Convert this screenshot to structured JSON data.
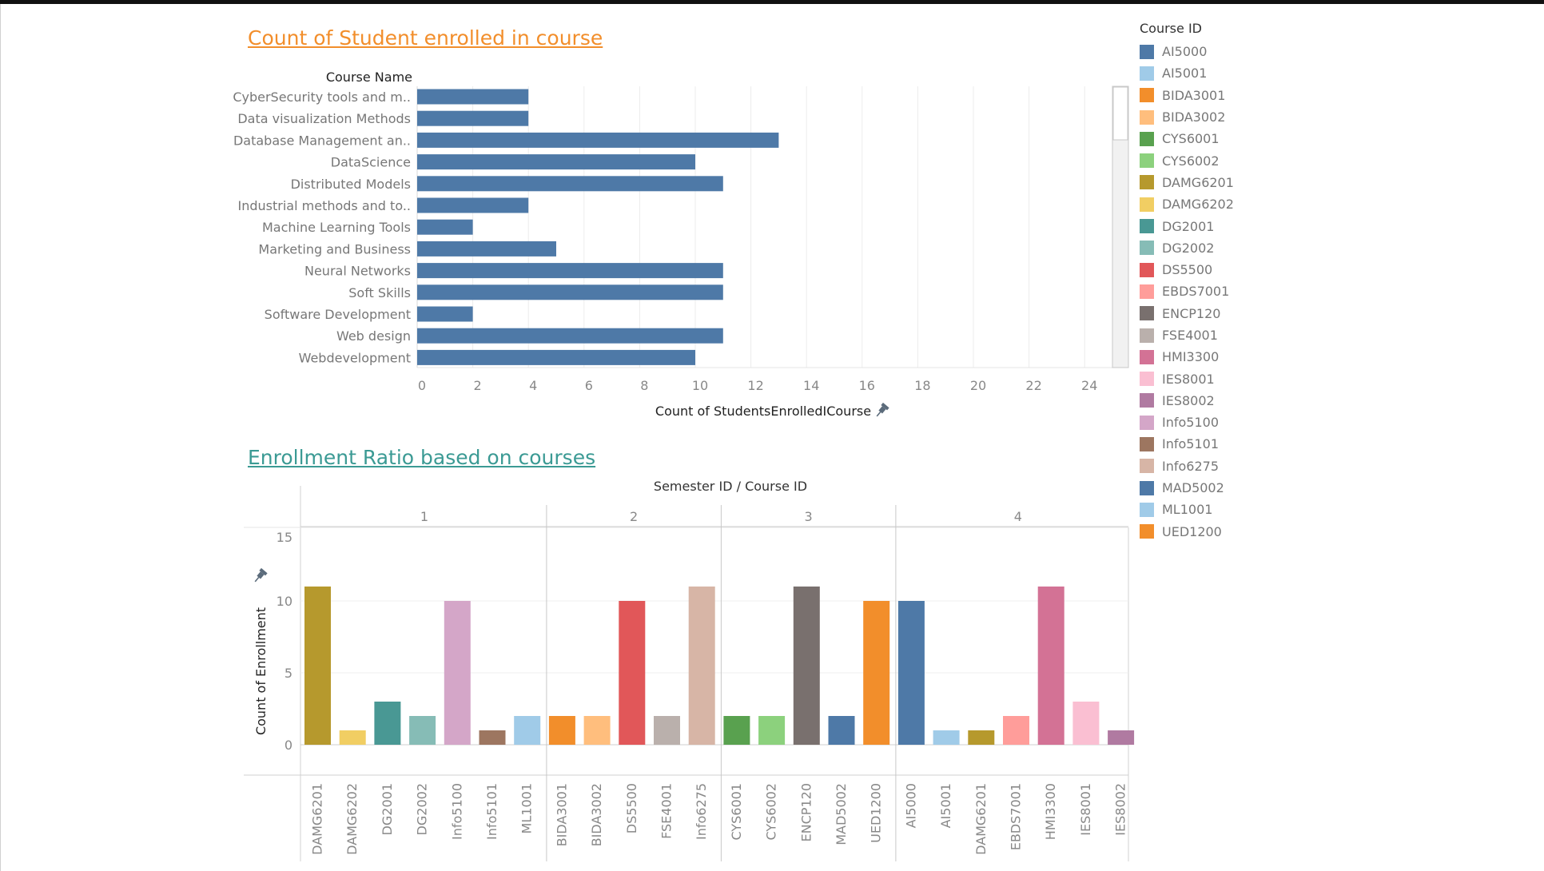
{
  "chart_data": [
    {
      "type": "bar",
      "orientation": "horizontal",
      "title": "Count of Student enrolled in course",
      "ylabel": "Course Name",
      "xlabel": "Count of StudentsEnrolledICourse",
      "categories": [
        "CyberSecurity tools and m..",
        "Data visualization Methods",
        "Database Management an..",
        "DataScience",
        "Distributed Models",
        "Industrial methods and to..",
        "Machine Learning Tools",
        "Marketing and Business",
        "Neural Networks",
        "Soft Skills",
        "Software Development",
        "Web design",
        "Webdevelopment"
      ],
      "values": [
        4,
        4,
        13,
        10,
        11,
        4,
        2,
        5,
        11,
        11,
        2,
        11,
        10
      ],
      "xlim": [
        0,
        25
      ],
      "xticks": [
        0,
        2,
        4,
        6,
        8,
        10,
        12,
        14,
        16,
        18,
        20,
        22,
        24
      ],
      "grid": true,
      "color": "#4e79a7"
    },
    {
      "type": "bar",
      "title": "Enrollment Ratio based on courses",
      "header": "Semester ID  /  Course ID",
      "ylabel": "Count of Enrollment",
      "ylim": [
        0,
        15
      ],
      "yticks": [
        0,
        5,
        10,
        15
      ],
      "grid": true,
      "panels": [
        {
          "semester": "1",
          "bars": [
            {
              "course": "DAMG6201",
              "value": 11,
              "color": "#b6992d"
            },
            {
              "course": "DAMG6202",
              "value": 1,
              "color": "#f1ce63"
            },
            {
              "course": "DG2001",
              "value": 3,
              "color": "#499894"
            },
            {
              "course": "DG2002",
              "value": 2,
              "color": "#86bcb6"
            },
            {
              "course": "Info5100",
              "value": 10,
              "color": "#d4a6c8"
            },
            {
              "course": "Info5101",
              "value": 1,
              "color": "#9d7660"
            },
            {
              "course": "ML1001",
              "value": 2,
              "color": "#a0cbe8"
            }
          ]
        },
        {
          "semester": "2",
          "bars": [
            {
              "course": "BIDA3001",
              "value": 2,
              "color": "#f28e2b"
            },
            {
              "course": "BIDA3002",
              "value": 2,
              "color": "#ffbe7d"
            },
            {
              "course": "DS5500",
              "value": 10,
              "color": "#e15759"
            },
            {
              "course": "FSE4001",
              "value": 2,
              "color": "#bab0ac"
            },
            {
              "course": "Info6275",
              "value": 11,
              "color": "#d7b5a6"
            }
          ]
        },
        {
          "semester": "3",
          "bars": [
            {
              "course": "CYS6001",
              "value": 2,
              "color": "#59a14f"
            },
            {
              "course": "CYS6002",
              "value": 2,
              "color": "#8cd17d"
            },
            {
              "course": "ENCP120",
              "value": 11,
              "color": "#79706e"
            },
            {
              "course": "MAD5002",
              "value": 2,
              "color": "#4e79a7"
            },
            {
              "course": "UED1200",
              "value": 10,
              "color": "#f28e2b"
            }
          ]
        },
        {
          "semester": "4",
          "bars": [
            {
              "course": "AI5000",
              "value": 10,
              "color": "#4e79a7"
            },
            {
              "course": "AI5001",
              "value": 1,
              "color": "#a0cbe8"
            },
            {
              "course": "DAMG6201",
              "value": 1,
              "color": "#b6992d"
            },
            {
              "course": "EBDS7001",
              "value": 2,
              "color": "#ff9d9a"
            },
            {
              "course": "HMI3300",
              "value": 11,
              "color": "#d37295"
            },
            {
              "course": "IES8001",
              "value": 3,
              "color": "#fabfd2"
            },
            {
              "course": "IES8002",
              "value": 1,
              "color": "#b07aa1"
            }
          ]
        }
      ]
    }
  ],
  "legend": {
    "title": "Course ID",
    "placement": "right",
    "items": [
      {
        "label": "AI5000",
        "color": "#4e79a7"
      },
      {
        "label": "AI5001",
        "color": "#a0cbe8"
      },
      {
        "label": "BIDA3001",
        "color": "#f28e2b"
      },
      {
        "label": "BIDA3002",
        "color": "#ffbe7d"
      },
      {
        "label": "CYS6001",
        "color": "#59a14f"
      },
      {
        "label": "CYS6002",
        "color": "#8cd17d"
      },
      {
        "label": "DAMG6201",
        "color": "#b6992d"
      },
      {
        "label": "DAMG6202",
        "color": "#f1ce63"
      },
      {
        "label": "DG2001",
        "color": "#499894"
      },
      {
        "label": "DG2002",
        "color": "#86bcb6"
      },
      {
        "label": "DS5500",
        "color": "#e15759"
      },
      {
        "label": "EBDS7001",
        "color": "#ff9d9a"
      },
      {
        "label": "ENCP120",
        "color": "#79706e"
      },
      {
        "label": "FSE4001",
        "color": "#bab0ac"
      },
      {
        "label": "HMI3300",
        "color": "#d37295"
      },
      {
        "label": "IES8001",
        "color": "#fabfd2"
      },
      {
        "label": "IES8002",
        "color": "#b07aa1"
      },
      {
        "label": "Info5100",
        "color": "#d4a6c8"
      },
      {
        "label": "Info5101",
        "color": "#9d7660"
      },
      {
        "label": "Info6275",
        "color": "#d7b5a6"
      },
      {
        "label": "MAD5002",
        "color": "#4e79a7"
      },
      {
        "label": "ML1001",
        "color": "#a0cbe8"
      },
      {
        "label": "UED1200",
        "color": "#f28e2b"
      }
    ]
  },
  "icons": {
    "axis_pin": "pin-icon"
  }
}
